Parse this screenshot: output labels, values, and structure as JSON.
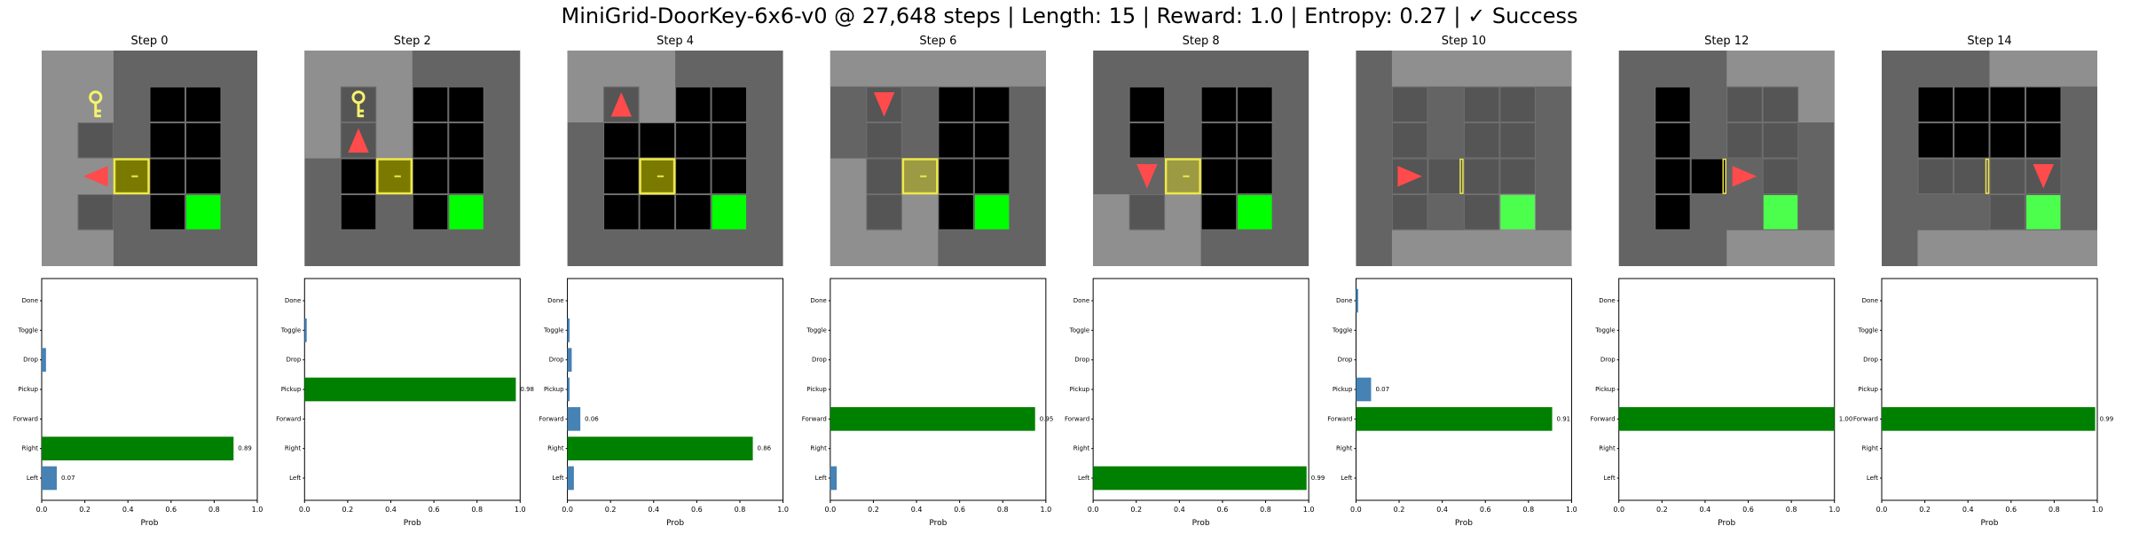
{
  "title": "MiniGrid-DoorKey-6x6-v0 @ 27,648 steps | Length: 15 | Reward: 1.0 | Entropy: 0.27 | ✓ Success",
  "colors": {
    "wall": "#646464",
    "unseen": "#000000",
    "visible_overlay": "#8f8f8f",
    "key": "#f7f36a",
    "door": "#efe84a",
    "goal": "#00ff00",
    "agent": "#ff4b4b",
    "prob_max": "#008000",
    "prob_other": "#4682b4"
  },
  "icons": {
    "agent": "triangle-agent-icon",
    "key": "key-icon",
    "door": "locked-door-icon",
    "goal": "goal-square-icon"
  },
  "chart_data": [
    {
      "type": "bar",
      "orientation": "horizontal",
      "title": "Step 0",
      "categories": [
        "Left",
        "Right",
        "Forward",
        "Pickup",
        "Drop",
        "Toggle",
        "Done"
      ],
      "values": [
        0.07,
        0.89,
        0.0,
        0.0,
        0.02,
        0.0,
        0.0
      ],
      "value_labels": [
        "0.07",
        "0.89",
        "",
        "",
        "",
        "",
        ""
      ],
      "xlabel": "Prob",
      "xlim": [
        0,
        1.0
      ],
      "xticks": [
        "0.0",
        "0.2",
        "0.4",
        "0.6",
        "0.8",
        "1.0"
      ],
      "grid": {
        "agent_dir": "left",
        "has_key": false,
        "door": "locked"
      }
    },
    {
      "type": "bar",
      "orientation": "horizontal",
      "title": "Step 2",
      "categories": [
        "Left",
        "Right",
        "Forward",
        "Pickup",
        "Drop",
        "Toggle",
        "Done"
      ],
      "values": [
        0.0,
        0.0,
        0.0,
        0.98,
        0.0,
        0.01,
        0.0
      ],
      "value_labels": [
        "",
        "",
        "",
        "0.98",
        "",
        "",
        ""
      ],
      "xlabel": "Prob",
      "xlim": [
        0,
        1.0
      ],
      "xticks": [
        "0.0",
        "0.2",
        "0.4",
        "0.6",
        "0.8",
        "1.0"
      ],
      "grid": {
        "agent_dir": "up",
        "has_key": false,
        "door": "locked"
      }
    },
    {
      "type": "bar",
      "orientation": "horizontal",
      "title": "Step 4",
      "categories": [
        "Left",
        "Right",
        "Forward",
        "Pickup",
        "Drop",
        "Toggle",
        "Done"
      ],
      "values": [
        0.03,
        0.86,
        0.06,
        0.01,
        0.02,
        0.01,
        0.0
      ],
      "value_labels": [
        "",
        "0.86",
        "0.06",
        "",
        "",
        "",
        ""
      ],
      "xlabel": "Prob",
      "xlim": [
        0,
        1.0
      ],
      "xticks": [
        "0.0",
        "0.2",
        "0.4",
        "0.6",
        "0.8",
        "1.0"
      ],
      "grid": {
        "agent_dir": "up",
        "has_key": true,
        "door": "locked"
      }
    },
    {
      "type": "bar",
      "orientation": "horizontal",
      "title": "Step 6",
      "categories": [
        "Left",
        "Right",
        "Forward",
        "Pickup",
        "Drop",
        "Toggle",
        "Done"
      ],
      "values": [
        0.03,
        0.0,
        0.95,
        0.0,
        0.0,
        0.0,
        0.0
      ],
      "value_labels": [
        "",
        "",
        "0.95",
        "",
        "",
        "",
        ""
      ],
      "xlabel": "Prob",
      "xlim": [
        0,
        1.0
      ],
      "xticks": [
        "0.0",
        "0.2",
        "0.4",
        "0.6",
        "0.8",
        "1.0"
      ],
      "grid": {
        "agent_dir": "down",
        "has_key": true,
        "door": "locked"
      }
    },
    {
      "type": "bar",
      "orientation": "horizontal",
      "title": "Step 8",
      "categories": [
        "Left",
        "Right",
        "Forward",
        "Pickup",
        "Drop",
        "Toggle",
        "Done"
      ],
      "values": [
        0.99,
        0.0,
        0.0,
        0.0,
        0.0,
        0.0,
        0.0
      ],
      "value_labels": [
        "0.99",
        "",
        "",
        "",
        "",
        "",
        ""
      ],
      "xlabel": "Prob",
      "xlim": [
        0,
        1.0
      ],
      "xticks": [
        "0.0",
        "0.2",
        "0.4",
        "0.6",
        "0.8",
        "1.0"
      ],
      "grid": {
        "agent_dir": "down",
        "has_key": true,
        "door": "locked"
      }
    },
    {
      "type": "bar",
      "orientation": "horizontal",
      "title": "Step 10",
      "categories": [
        "Left",
        "Right",
        "Forward",
        "Pickup",
        "Drop",
        "Toggle",
        "Done"
      ],
      "values": [
        0.0,
        0.0,
        0.91,
        0.07,
        0.0,
        0.0,
        0.01
      ],
      "value_labels": [
        "",
        "",
        "0.91",
        "0.07",
        "",
        "",
        ""
      ],
      "xlabel": "Prob",
      "xlim": [
        0,
        1.0
      ],
      "xticks": [
        "0.0",
        "0.2",
        "0.4",
        "0.6",
        "0.8",
        "1.0"
      ],
      "grid": {
        "agent_dir": "right",
        "has_key": true,
        "door": "open"
      }
    },
    {
      "type": "bar",
      "orientation": "horizontal",
      "title": "Step 12",
      "categories": [
        "Left",
        "Right",
        "Forward",
        "Pickup",
        "Drop",
        "Toggle",
        "Done"
      ],
      "values": [
        0.0,
        0.0,
        1.0,
        0.0,
        0.0,
        0.0,
        0.0
      ],
      "value_labels": [
        "",
        "",
        "1.00",
        "",
        "",
        "",
        ""
      ],
      "xlabel": "Prob",
      "xlim": [
        0,
        1.0
      ],
      "xticks": [
        "0.0",
        "0.2",
        "0.4",
        "0.6",
        "0.8",
        "1.0"
      ],
      "grid": {
        "agent_dir": "right",
        "has_key": true,
        "door": "open"
      }
    },
    {
      "type": "bar",
      "orientation": "horizontal",
      "title": "Step 14",
      "categories": [
        "Left",
        "Right",
        "Forward",
        "Pickup",
        "Drop",
        "Toggle",
        "Done"
      ],
      "values": [
        0.0,
        0.0,
        0.99,
        0.0,
        0.0,
        0.0,
        0.0
      ],
      "value_labels": [
        "",
        "",
        "0.99",
        "",
        "",
        "",
        ""
      ],
      "xlabel": "Prob",
      "xlim": [
        0,
        1.0
      ],
      "xticks": [
        "0.0",
        "0.2",
        "0.4",
        "0.6",
        "0.8",
        "1.0"
      ],
      "grid": {
        "agent_dir": "down",
        "has_key": true,
        "door": "open"
      }
    }
  ]
}
